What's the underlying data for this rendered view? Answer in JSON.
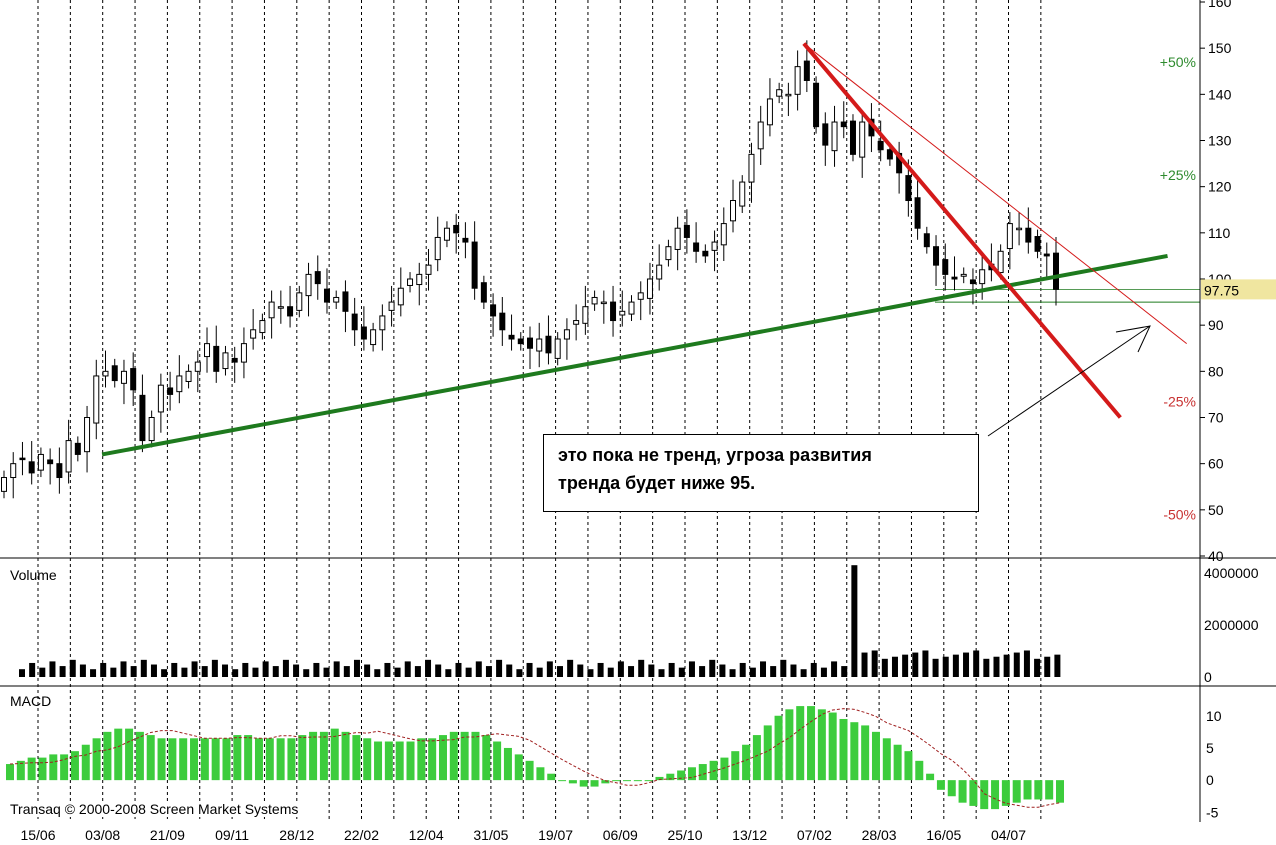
{
  "chart_data": {
    "type": "candlestick",
    "x_tick_labels": [
      "15/06",
      "03/08",
      "21/09",
      "09/11",
      "28/12",
      "22/02",
      "12/04",
      "31/05",
      "19/07",
      "06/09",
      "25/10",
      "13/12",
      "07/02",
      "28/03",
      "16/05",
      "04/07"
    ],
    "price": {
      "y_ticks": [
        40,
        50,
        60,
        70,
        80,
        90,
        100,
        110,
        120,
        130,
        140,
        150,
        160
      ],
      "ylim": [
        40,
        160
      ],
      "last_price_label": "97.75",
      "last_price": 97.75,
      "percent_levels": [
        {
          "label": "+50%",
          "value": 147,
          "color": "#2e8b2e"
        },
        {
          "label": "+25%",
          "value": 122.5,
          "color": "#2e8b2e"
        },
        {
          "label": "-25%",
          "value": 73.5,
          "color": "#c83232"
        },
        {
          "label": "-50%",
          "value": 49,
          "color": "#c83232"
        }
      ],
      "closes": [
        57,
        60,
        61,
        58,
        62,
        60,
        57,
        65,
        62,
        70,
        79,
        80,
        78,
        80,
        76,
        65,
        70,
        77,
        75,
        79,
        80,
        82,
        86,
        80,
        84,
        82,
        86,
        89,
        91,
        95,
        94,
        92,
        97,
        101,
        99,
        95,
        96,
        93,
        89,
        87,
        89,
        92,
        95,
        98,
        100,
        101,
        103,
        109,
        111,
        110,
        108,
        98,
        95,
        92,
        89,
        87,
        86,
        85,
        87,
        84,
        87,
        89,
        91,
        94,
        96,
        95,
        91,
        93,
        95,
        97,
        100,
        103,
        107,
        111,
        109,
        106,
        105,
        108,
        112,
        117,
        121,
        127,
        134,
        139,
        141,
        140,
        146,
        143,
        133,
        129,
        134,
        133,
        127,
        134,
        131,
        128,
        126,
        123,
        117,
        111,
        107,
        103,
        101,
        100,
        101,
        99,
        102,
        102,
        106,
        112,
        111,
        108,
        106,
        105,
        97.75
      ],
      "candles_note": "approximate weekly closes read off the chart",
      "support_line": {
        "x0": 0.08,
        "y0": 62,
        "x1": 0.915,
        "y1": 105,
        "color": "#1e7a1e"
      },
      "resistance_line_thick": {
        "x0": 0.63,
        "y0": 151,
        "x1": 0.878,
        "y1": 70,
        "color": "#d41a1a"
      },
      "resistance_line_thin": {
        "x0": 0.63,
        "y0": 151,
        "x1": 0.93,
        "y1": 86,
        "color": "#d41a1a"
      },
      "level_line_95": 95,
      "level_line_97_75": 97.75
    },
    "volume": {
      "label": "Volume",
      "y_ticks": [
        0,
        2000000,
        4000000
      ],
      "y_tick_labels": [
        "0",
        "2000000",
        "4000000"
      ],
      "ylim": [
        0,
        4500000
      ],
      "spike_index": 66,
      "spike_value": 4300000
    },
    "macd": {
      "label": "MACD",
      "y_ticks": [
        -5,
        0,
        5,
        10
      ],
      "ylim": [
        -6.5,
        14
      ],
      "histogram_color": "#3ccc3c",
      "signal_color": "#a02020",
      "values": [
        2.5,
        3,
        3.5,
        3.5,
        4,
        4,
        4.5,
        5.5,
        6.5,
        7.5,
        8,
        8,
        7.5,
        7,
        6.5,
        6.5,
        6.5,
        6.5,
        6.5,
        6.5,
        6.5,
        7,
        7,
        6.5,
        6.5,
        6.5,
        6.5,
        7,
        7.5,
        7.5,
        8,
        7.5,
        7,
        6.5,
        6,
        6,
        6,
        6,
        6.5,
        6.5,
        7,
        7.5,
        7.5,
        7.5,
        7,
        6,
        5,
        4,
        3,
        2,
        1,
        0,
        -0.5,
        -1,
        -1,
        -0.5,
        0,
        0,
        0,
        0,
        0.5,
        1,
        1.5,
        2,
        2.5,
        3,
        3.5,
        4.5,
        5.5,
        7,
        8.5,
        10,
        11,
        11.5,
        11.5,
        11,
        10.5,
        9.5,
        9,
        8.5,
        7.5,
        6.5,
        5.5,
        4.5,
        3,
        1,
        -1.5,
        -2.5,
        -3.5,
        -4,
        -4.5,
        -4.5,
        -4,
        -3.5,
        -3,
        -3,
        -3,
        -3.5
      ]
    }
  },
  "annotation": {
    "line1": "это пока не тренд, угроза развития",
    "line2": "тренда будет ниже 95."
  },
  "copyright": "Transaq © 2000-2008 Screen Market Systems"
}
